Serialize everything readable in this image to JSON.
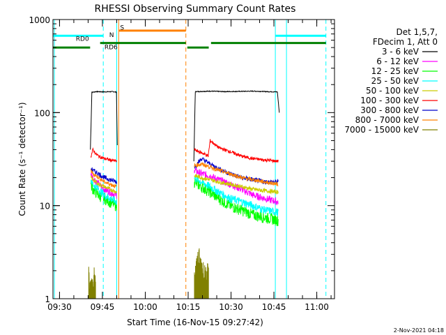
{
  "chart_data": {
    "type": "line",
    "title": "RHESSI Observing Summary Count Rates",
    "xlabel": "Start Time (16-Nov-15 09:27:42)",
    "ylabel": "Count Rate (s⁻¹ detector⁻¹)",
    "yscale": "log",
    "ylim": [
      1,
      1000
    ],
    "xlim_minutes": [
      0,
      98.5
    ],
    "x_ticks": [
      {
        "label": "09:30",
        "minute": 2.3
      },
      {
        "label": "09:45",
        "minute": 17.3
      },
      {
        "label": "10:00",
        "minute": 32.3
      },
      {
        "label": "10:15",
        "minute": 47.3
      },
      {
        "label": "10:30",
        "minute": 62.3
      },
      {
        "label": "10:45",
        "minute": 77.3
      },
      {
        "label": "11:00",
        "minute": 92.3
      }
    ],
    "y_ticks": [
      {
        "label": "1",
        "value": 1
      },
      {
        "label": "10",
        "value": 10
      },
      {
        "label": "100",
        "value": 100
      },
      {
        "label": "1000",
        "value": 1000
      }
    ],
    "legend_header": [
      "Det 1,5,7,",
      "FDecim 1, Att 0"
    ],
    "legend_position": "right",
    "series": [
      {
        "name": "3 - 6 keV",
        "color": "#000000",
        "segments": [
          {
            "x": [
              13.1,
              13.6,
              15,
              18,
              21,
              22.2,
              22.5
            ],
            "y": [
              40,
              165,
              168,
              167,
              168,
              166,
              45
            ]
          },
          {
            "x": [
              49.3,
              49.8,
              55,
              60,
              65,
              70,
              75,
              78.5,
              79.2
            ],
            "y": [
              30,
              168,
              170,
              168,
              169,
              170,
              168,
              167,
              100
            ]
          }
        ]
      },
      {
        "name": "6 - 12 keV",
        "color": "#ff00ff",
        "segments": [
          {
            "x": [
              13.3,
              14,
              16,
              18,
              20,
              22.3
            ],
            "y": [
              22,
              20,
              17,
              15,
              14,
              13
            ]
          },
          {
            "x": [
              49.5,
              52,
              55,
              58,
              62,
              66,
              70,
              74,
              78.8
            ],
            "y": [
              24,
              22,
              21,
              19,
              17,
              15,
              13,
              12,
              11
            ]
          }
        ]
      },
      {
        "name": "12 - 25 keV",
        "color": "#00ff00",
        "segments": [
          {
            "x": [
              13.3,
              14,
              16,
              18,
              20,
              22.3
            ],
            "y": [
              17,
              15,
              13,
              12,
              11,
              10
            ]
          },
          {
            "x": [
              49.5,
              52,
              55,
              58,
              62,
              66,
              70,
              74,
              78.8
            ],
            "y": [
              18,
              16,
              14,
              12,
              10,
              9,
              8,
              7.5,
              7
            ]
          }
        ]
      },
      {
        "name": "25 - 50 keV",
        "color": "#00ffff",
        "segments": [
          {
            "x": [
              13.3,
              14,
              16,
              18,
              20,
              22.3
            ],
            "y": [
              19,
              17,
              15,
              13,
              12,
              11
            ]
          },
          {
            "x": [
              49.5,
              52,
              55,
              58,
              62,
              66,
              70,
              74,
              78.8
            ],
            "y": [
              20,
              18,
              16,
              14,
              12,
              11,
              10,
              9,
              8.5
            ]
          }
        ]
      },
      {
        "name": "50 - 100 keV",
        "color": "#cccc00",
        "segments": [
          {
            "x": [
              13.3,
              14,
              16,
              18,
              20,
              22.3
            ],
            "y": [
              20,
              19,
              17,
              16,
              15,
              14
            ]
          },
          {
            "x": [
              49.5,
              52,
              55,
              58,
              62,
              66,
              70,
              74,
              78.8
            ],
            "y": [
              21,
              20,
              19,
              18,
              17,
              16,
              15,
              14.5,
              14
            ]
          }
        ]
      },
      {
        "name": "100 - 300 keV",
        "color": "#ff0000",
        "segments": [
          {
            "x": [
              13.3,
              14,
              15,
              16,
              18,
              20,
              22.3
            ],
            "y": [
              34,
              40,
              36,
              34,
              32,
              31,
              30
            ]
          },
          {
            "x": [
              49.5,
              51,
              53,
              54.3,
              55,
              58,
              62,
              66,
              70,
              74,
              78.8
            ],
            "y": [
              40,
              38,
              36,
              34,
              50,
              42,
              38,
              34,
              32,
              31,
              30
            ]
          }
        ]
      },
      {
        "name": "300 - 800 keV",
        "color": "#0000cc",
        "segments": [
          {
            "x": [
              13.3,
              14,
              16,
              18,
              20,
              22.3
            ],
            "y": [
              25,
              24,
              22,
              20,
              19,
              18
            ]
          },
          {
            "x": [
              49.5,
              52,
              55,
              58,
              62,
              66,
              70,
              74,
              78.8
            ],
            "y": [
              26,
              32,
              28,
              25,
              22,
              20,
              19,
              18,
              18
            ]
          }
        ]
      },
      {
        "name": "800 - 7000 keV",
        "color": "#ff8000",
        "segments": [
          {
            "x": [
              13.3,
              14,
              16,
              18,
              20,
              22.3
            ],
            "y": [
              24,
              22,
              20,
              18,
              17,
              16
            ]
          },
          {
            "x": [
              49.5,
              52,
              55,
              58,
              62,
              66,
              70,
              74,
              78.8
            ],
            "y": [
              27,
              28,
              26,
              24,
              22,
              20,
              19,
              18,
              17
            ]
          }
        ]
      },
      {
        "name": "7000 - 15000 keV",
        "color": "#808000",
        "segments": [
          {
            "x": [
              12.5,
              13,
              13.5,
              14,
              14.5,
              15
            ],
            "y": [
              1.8,
              1.3,
              1.9,
              1.2,
              1.8,
              1.4
            ]
          },
          {
            "x": [
              49.5,
              50,
              50.5,
              51,
              51.5,
              52,
              52.5,
              53,
              53.5,
              54,
              54.5
            ],
            "y": [
              1.6,
              2.1,
              2.4,
              3,
              2.2,
              2.6,
              1.9,
              2.3,
              1.7,
              2.0,
              1.6
            ]
          }
        ]
      }
    ],
    "flags": [
      {
        "name": "S",
        "color": "#ff8000",
        "label_minute": 23.5,
        "label_value": 780,
        "bars": [
          {
            "start": 23.0,
            "end": 46.5,
            "value": 760
          }
        ]
      },
      {
        "name": "N",
        "color": "#00ffff",
        "label_minute": 19.7,
        "label_value": 650,
        "bars": [
          {
            "start": 0,
            "end": 17.6,
            "value": 670
          },
          {
            "start": 77.8,
            "end": 95.5,
            "value": 670
          }
        ]
      },
      {
        "name": "RD0",
        "color": "#008000",
        "label_minute": 8.0,
        "label_value": 590,
        "bars": [
          {
            "start": 0,
            "end": 13,
            "value": 500
          }
        ]
      },
      {
        "name": "RD6",
        "color": "#008000",
        "label_minute": 18.0,
        "label_value": 480,
        "bars": [
          {
            "start": 16.5,
            "end": 46.5,
            "value": 560
          },
          {
            "start": 47,
            "end": 54.5,
            "value": 500
          },
          {
            "start": 55.3,
            "end": 95.5,
            "value": 560
          }
        ]
      }
    ],
    "vlines": [
      {
        "minute": 0.5,
        "style": "solid",
        "color": "#00ffff"
      },
      {
        "minute": 17.6,
        "style": "dashed",
        "color": "#00ffff"
      },
      {
        "minute": 22.3,
        "style": "solid",
        "color": "#00ffff"
      },
      {
        "minute": 23.0,
        "style": "solid",
        "color": "#ff8000"
      },
      {
        "minute": 46.5,
        "style": "dashed",
        "color": "#ff8000"
      },
      {
        "minute": 77.8,
        "style": "solid",
        "color": "#00ffff"
      },
      {
        "minute": 81.7,
        "style": "solid",
        "color": "#00ffff"
      },
      {
        "minute": 95.5,
        "style": "dashed",
        "color": "#00ffff"
      }
    ],
    "footer_timestamp": "2-Nov-2021 04:18"
  }
}
